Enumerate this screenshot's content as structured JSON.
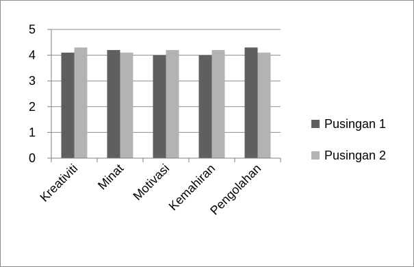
{
  "chart_data": {
    "type": "bar",
    "title": "",
    "xlabel": "",
    "ylabel": "",
    "categories": [
      "Kreativiti",
      "Minat",
      "Motivasi",
      "Kemahiran",
      "Pengolahan"
    ],
    "series": [
      {
        "name": "Pusingan 1",
        "values": [
          4.1,
          4.2,
          4.0,
          4.0,
          4.3
        ],
        "color": "#5f5f5f"
      },
      {
        "name": "Pusingan 2",
        "values": [
          4.3,
          4.1,
          4.2,
          4.2,
          4.1
        ],
        "color": "#b3b3b3"
      }
    ],
    "ylim": [
      0,
      5
    ],
    "yticks": [
      0,
      1,
      2,
      3,
      4,
      5
    ],
    "grid": true,
    "legend_position": "right"
  }
}
